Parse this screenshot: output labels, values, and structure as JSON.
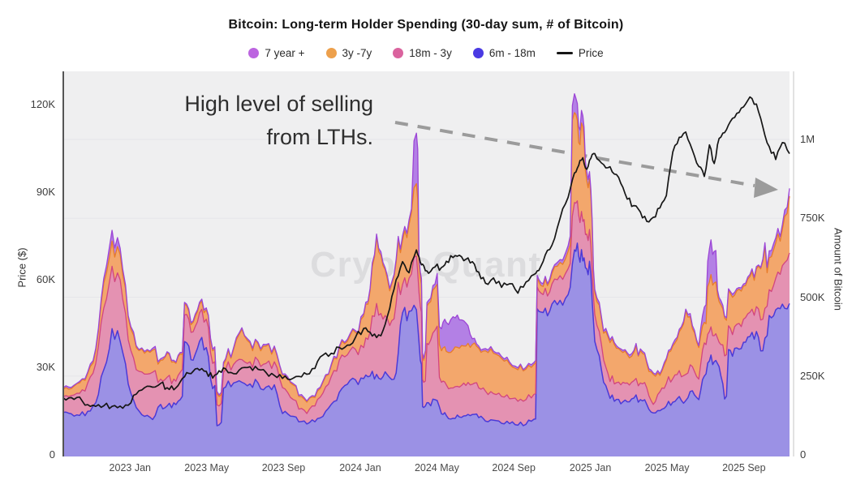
{
  "title": "Bitcoin: Long-term Holder Spending (30-day sum, # of Bitcoin)",
  "watermark": "CryptoQuant",
  "annotation": {
    "line1": "High level of selling",
    "line2": "from LTHs."
  },
  "colors": {
    "plot_background": "#efeff0",
    "gridline": "#e6e6e9",
    "left_axis_line": "#555555",
    "right_axis_line": "#d8d8d8",
    "arrow": "#9b9b9b",
    "watermark": "#dcdcde",
    "series_7y": {
      "fill": "#b380e5",
      "stroke": "#9c45d6",
      "dot": "#bc64e0"
    },
    "series_3y7y": {
      "fill": "#f3a76c",
      "stroke": "#e87c2a",
      "dot": "#eda04c"
    },
    "series_18m3y": {
      "fill": "#e492b2",
      "stroke": "#d2457f",
      "dot": "#da639e"
    },
    "series_6m18m": {
      "fill": "#9b91e5",
      "stroke": "#4b3ad8",
      "dot": "#4a3ae3"
    },
    "price_line": "#161616"
  },
  "legend": [
    {
      "label": "7 year +",
      "marker": "dot",
      "colorKey": "series_7y"
    },
    {
      "label": "3y -7y",
      "marker": "dot",
      "colorKey": "series_3y7y"
    },
    {
      "label": "18m - 3y",
      "marker": "dot",
      "colorKey": "series_18m3y"
    },
    {
      "label": "6m - 18m",
      "marker": "dot",
      "colorKey": "series_6m18m"
    },
    {
      "label": "Price",
      "marker": "line",
      "colorKey": "price_line"
    }
  ],
  "axes": {
    "left": {
      "title": "Price ($)",
      "tick_labels": [
        "0",
        "30K",
        "60K",
        "90K",
        "120K"
      ],
      "tick_values": [
        0,
        30,
        60,
        90,
        120
      ],
      "unit": "thousand USD"
    },
    "right": {
      "title": "Amount of Bitcoin",
      "tick_labels": [
        "0",
        "250K",
        "500K",
        "750K",
        "1M"
      ],
      "tick_values": [
        0,
        250,
        500,
        750,
        1000
      ],
      "unit": "thousand BTC"
    },
    "x": {
      "tick_labels": [
        "2023 Jan",
        "2023 May",
        "2023 Sep",
        "2024 Jan",
        "2024 May",
        "2024 Sep",
        "2025 Jan",
        "2025 May",
        "2025 Sep"
      ],
      "tick_years": [
        2023.0,
        2023.333,
        2023.667,
        2024.0,
        2024.333,
        2024.667,
        2025.0,
        2025.333,
        2025.667
      ]
    }
  },
  "chart_data": {
    "type": "area",
    "stacked": true,
    "title": "Bitcoin: Long-term Holder Spending (30-day sum, # of Bitcoin)",
    "x_range": [
      "2022-09",
      "2025-11"
    ],
    "x_axis": "date (decimal year)",
    "y_left_label": "Price ($)",
    "y_right_label": "Amount of Bitcoin",
    "y_right_unit": "thousand BTC",
    "price_unit": "thousand USD",
    "grid": "subtle horizontal",
    "legend_position": "top center",
    "x": [
      2022.71,
      2022.745,
      2022.781,
      2022.816,
      2022.851,
      2022.886,
      2022.922,
      2022.957,
      2022.992,
      2023.027,
      2023.063,
      2023.098,
      2023.133,
      2023.161,
      2023.19,
      2023.218,
      2023.246,
      2023.274,
      2023.302,
      2023.331,
      2023.359,
      2023.387,
      2023.415,
      2023.45,
      2023.486,
      2023.521,
      2023.556,
      2023.591,
      2023.627,
      2023.662,
      2023.697,
      2023.733,
      2023.768,
      2023.803,
      2023.838,
      2023.874,
      2023.909,
      2023.944,
      2023.979,
      2024.015,
      2024.043,
      2024.071,
      2024.099,
      2024.128,
      2024.156,
      2024.184,
      2024.212,
      2024.244,
      2024.261,
      2024.276,
      2024.297,
      2024.325,
      2024.353,
      2024.374,
      2024.403,
      2024.431,
      2024.459,
      2024.487,
      2024.515,
      2024.544,
      2024.579,
      2024.614,
      2024.649,
      2024.685,
      2024.72,
      2024.755,
      2024.776,
      2024.804,
      2024.833,
      2024.868,
      2024.903,
      2024.931,
      2024.949,
      2024.967,
      2024.984,
      2025.002,
      2025.019,
      2025.048,
      2025.076,
      2025.104,
      2025.132,
      2025.16,
      2025.189,
      2025.217,
      2025.245,
      2025.273,
      2025.302,
      2025.33,
      2025.358,
      2025.386,
      2025.414,
      2025.443,
      2025.471,
      2025.495,
      2025.517,
      2025.538,
      2025.559,
      2025.583,
      2025.608,
      2025.636,
      2025.665,
      2025.693,
      2025.721,
      2025.749,
      2025.777,
      2025.805,
      2025.834,
      2025.865
    ],
    "series": [
      {
        "name": "6m - 18m",
        "stack_order": 1,
        "values": [
          135,
          130,
          125,
          138,
          165,
          270,
          400,
          360,
          225,
          150,
          122,
          112,
          160,
          155,
          165,
          175,
          355,
          300,
          360,
          340,
          210,
          95,
          215,
          228,
          230,
          225,
          228,
          215,
          222,
          131,
          123,
          105,
          98,
          105,
          122,
          160,
          198,
          224,
          238,
          242,
          250,
          255,
          248,
          245,
          260,
          450,
          455,
          460,
          300,
          150,
          165,
          175,
          130,
          125,
          116,
          120,
          124,
          128,
          118,
          107,
          110,
          100,
          99,
          94,
          97,
          113,
          455,
          465,
          478,
          490,
          508,
          650,
          630,
          615,
          590,
          570,
          360,
          270,
          200,
          170,
          162,
          168,
          180,
          175,
          160,
          133,
          140,
          155,
          167,
          185,
          172,
          203,
          175,
          250,
          298,
          295,
          280,
          177,
          331,
          339,
          357,
          375,
          391,
          330,
          442,
          460,
          478,
          480
        ]
      },
      {
        "name": "18m - 3y",
        "stack_order": 2,
        "values": [
          50,
          58,
          70,
          90,
          125,
          195,
          198,
          195,
          140,
          120,
          134,
          150,
          80,
          91,
          75,
          87,
          90,
          90,
          90,
          90,
          80,
          60,
          55,
          59,
          72,
          70,
          72,
          75,
          73,
          82,
          59,
          40,
          33,
          50,
          74,
          88,
          102,
          93,
          97,
          98,
          140,
          225,
          182,
          165,
          220,
          90,
          105,
          170,
          170,
          80,
          185,
          220,
          100,
          97,
          96,
          95,
          96,
          96,
          94,
          95,
          84,
          85,
          79,
          76,
          78,
          79,
          65,
          63,
          64,
          78,
          82,
          150,
          130,
          125,
          110,
          90,
          85,
          80,
          58,
          55,
          60,
          60,
          55,
          53,
          52,
          27,
          60,
          71,
          75,
          82,
          83,
          77,
          65,
          105,
          93,
          83,
          77,
          137,
          70,
          75,
          73,
          77,
          79,
          100,
          82,
          100,
          122,
          160
        ]
      },
      {
        "name": "3y -7y",
        "stack_order": 3,
        "values": [
          23,
          22,
          33,
          30,
          40,
          80,
          80,
          80,
          70,
          70,
          66,
          70,
          60,
          76,
          55,
          58,
          27,
          30,
          28,
          30,
          40,
          30,
          30,
          48,
          96,
          60,
          52,
          55,
          45,
          39,
          46,
          40,
          36,
          27,
          34,
          34,
          38,
          43,
          53,
          100,
          130,
          210,
          170,
          110,
          130,
          140,
          170,
          230,
          90,
          70,
          130,
          135,
          100,
          106,
          120,
          123,
          125,
          126,
          126,
          128,
          128,
          121,
          110,
          100,
          97,
          95,
          28,
          30,
          33,
          42,
          55,
          285,
          230,
          300,
          170,
          160,
          70,
          80,
          117,
          125,
          108,
          90,
          90,
          102,
          78,
          95,
          52,
          74,
          103,
          123,
          200,
          120,
          100,
          65,
          157,
          167,
          129,
          120,
          111,
          106,
          105,
          113,
          120,
          184,
          101,
          112,
          115,
          180
        ]
      },
      {
        "name": "7 year +",
        "stack_order": 4,
        "values": [
          5,
          4,
          5,
          5,
          8,
          15,
          34,
          20,
          7,
          6,
          6,
          6,
          5,
          5,
          5,
          5,
          6,
          5,
          6,
          6,
          5,
          5,
          5,
          5,
          5,
          5,
          5,
          5,
          5,
          4,
          4,
          4,
          4,
          4,
          4,
          5,
          6,
          6,
          6,
          8,
          8,
          10,
          10,
          8,
          10,
          15,
          15,
          160,
          20,
          6,
          10,
          12,
          70,
          92,
          106,
          90,
          73,
          18,
          7,
          7,
          7,
          6,
          6,
          6,
          6,
          6,
          8,
          8,
          9,
          9,
          18,
          60,
          50,
          35,
          30,
          20,
          10,
          8,
          7,
          6,
          6,
          6,
          6,
          6,
          6,
          5,
          5,
          6,
          7,
          8,
          7,
          10,
          6,
          48,
          105,
          100,
          13,
          6,
          6,
          7,
          7,
          7,
          7,
          6,
          22,
          16,
          15,
          25
        ]
      }
    ],
    "price_series": {
      "name": "Price",
      "values": [
        19.5,
        19.6,
        19.8,
        17.2,
        16.6,
        16.8,
        16.6,
        16.7,
        17.0,
        20.8,
        23.0,
        23.2,
        24.5,
        23.0,
        22.3,
        25.0,
        28.2,
        28.6,
        29.0,
        28.6,
        26.3,
        28.8,
        29.5,
        27.8,
        29.8,
        30.2,
        29.3,
        28.2,
        27.2,
        26.2,
        25.8,
        26.9,
        27.6,
        29.6,
        34.2,
        34.8,
        36.8,
        37.6,
        40.2,
        43.3,
        42.0,
        40.2,
        42.6,
        50.2,
        60.0,
        66.2,
        62.4,
        70.2,
        66.0,
        64.8,
        62.2,
        64.4,
        64.2,
        66.3,
        67.6,
        68.4,
        67.0,
        66.2,
        62.6,
        58.8,
        60.6,
        57.4,
        58.6,
        55.4,
        59.2,
        61.8,
        63.2,
        68.5,
        71.8,
        81.0,
        88.2,
        96.6,
        99.2,
        101.8,
        97.8,
        101.6,
        103.2,
        100.0,
        98.4,
        96.2,
        93.0,
        87.6,
        85.4,
        83.2,
        80.0,
        81.4,
        84.6,
        88.8,
        103.8,
        108.8,
        110.6,
        104.4,
        98.8,
        95.4,
        106.2,
        99.8,
        108.4,
        110.4,
        114.2,
        117.0,
        119.2,
        122.6,
        120.2,
        112.4,
        105.6,
        101.2,
        107.0,
        103.2
      ]
    },
    "ylim_right_thousand_btc": [
      0,
      1210
    ],
    "ylim_left_thousand_usd": [
      0,
      131
    ],
    "annotations": [
      {
        "text": "High level of selling from LTHs.",
        "type": "text+dashed-arrow",
        "arrow_direction": "down-right"
      }
    ]
  }
}
